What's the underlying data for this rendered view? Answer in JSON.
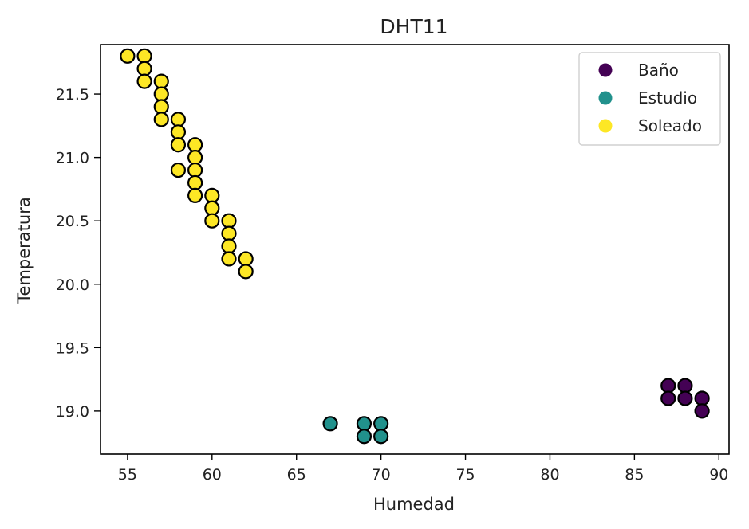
{
  "chart_data": {
    "type": "scatter",
    "title": "DHT11",
    "xlabel": "Humedad",
    "ylabel": "Temperatura",
    "xlim": [
      53.4,
      90.6
    ],
    "ylim": [
      18.66,
      21.89
    ],
    "xticks": [
      55,
      60,
      65,
      70,
      75,
      80,
      85,
      90
    ],
    "yticks": [
      19.0,
      19.5,
      20.0,
      20.5,
      21.0,
      21.5
    ],
    "xtick_labels": [
      "55",
      "60",
      "65",
      "70",
      "75",
      "80",
      "85",
      "90"
    ],
    "ytick_labels": [
      "19.0",
      "19.5",
      "20.0",
      "20.5",
      "21.0",
      "21.5"
    ],
    "grid": false,
    "legend_position": "top-right",
    "series": [
      {
        "name": "Baño",
        "color": "#440154",
        "points": [
          [
            87,
            19.2
          ],
          [
            87,
            19.1
          ],
          [
            88,
            19.2
          ],
          [
            88,
            19.1
          ],
          [
            89,
            19.1
          ],
          [
            89,
            19.0
          ]
        ]
      },
      {
        "name": "Estudio",
        "color": "#21918c",
        "points": [
          [
            67,
            18.9
          ],
          [
            69,
            18.9
          ],
          [
            69,
            18.8
          ],
          [
            70,
            18.9
          ],
          [
            70,
            18.8
          ]
        ]
      },
      {
        "name": "Soleado",
        "color": "#fde725",
        "points": [
          [
            55,
            21.8
          ],
          [
            56,
            21.8
          ],
          [
            56,
            21.7
          ],
          [
            56,
            21.6
          ],
          [
            57,
            21.6
          ],
          [
            57,
            21.5
          ],
          [
            57,
            21.4
          ],
          [
            57,
            21.3
          ],
          [
            58,
            21.3
          ],
          [
            58,
            21.2
          ],
          [
            58,
            21.1
          ],
          [
            58,
            20.9
          ],
          [
            59,
            21.1
          ],
          [
            59,
            21.0
          ],
          [
            59,
            20.9
          ],
          [
            59,
            20.8
          ],
          [
            59,
            20.7
          ],
          [
            60,
            20.7
          ],
          [
            60,
            20.6
          ],
          [
            60,
            20.5
          ],
          [
            61,
            20.5
          ],
          [
            61,
            20.4
          ],
          [
            61,
            20.3
          ],
          [
            61,
            20.2
          ],
          [
            62,
            20.2
          ],
          [
            62,
            20.1
          ]
        ]
      }
    ]
  }
}
